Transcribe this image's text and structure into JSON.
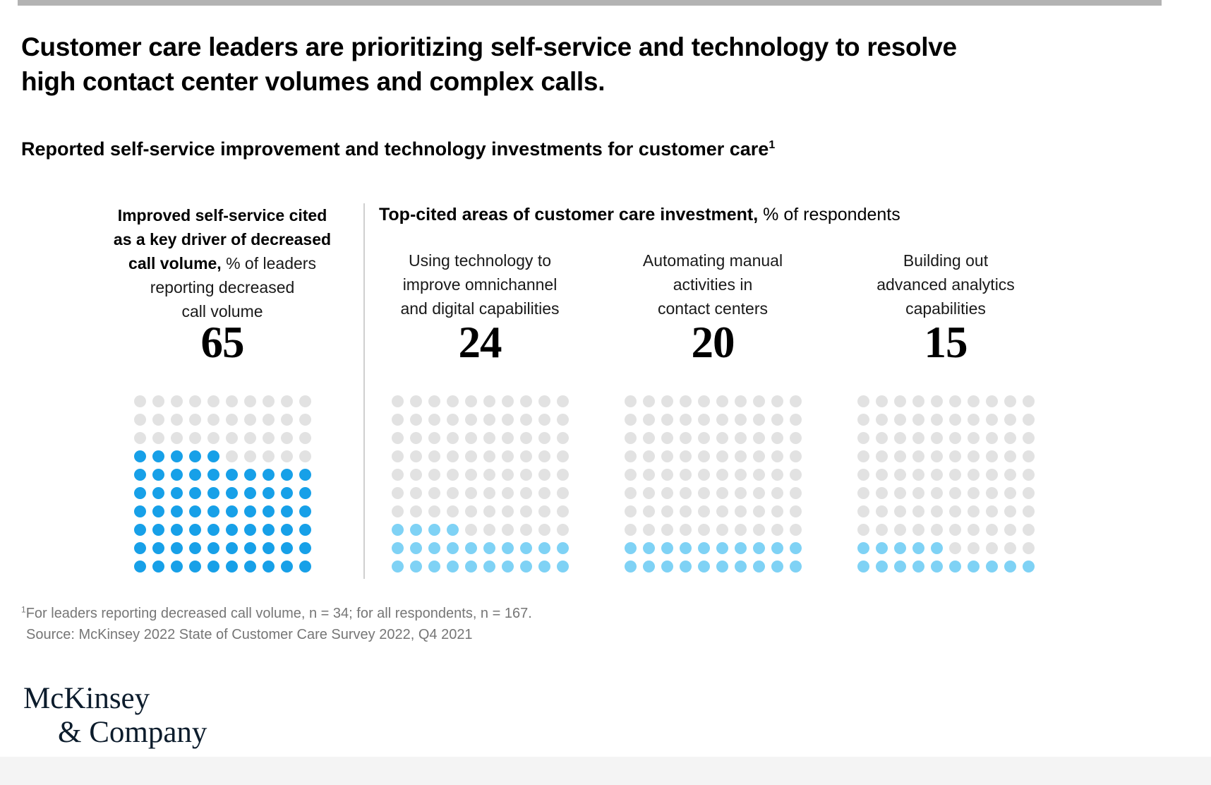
{
  "page": {
    "top_bar_color": "#b3b3b3",
    "title_lines": [
      "Customer care leaders are prioritizing self-service and technology to resolve",
      "high contact center volumes and complex calls."
    ],
    "subtitle": "Reported self-service improvement and technology investments for customer care",
    "subtitle_superscript": "1"
  },
  "chart_data": {
    "type": "waffle",
    "subtype": "pictogram dot grid, each dot = 1 percent, filled bottom-up from bottom-left",
    "grid": {
      "rows": 10,
      "cols": 10
    },
    "categories": [
      "Improved self-service cited as a key driver of decreased call volume, % of leaders reporting decreased call volume",
      "Using technology to improve omnichannel and digital capabilities",
      "Automating manual activities in contact centers",
      "Building out advanced analytics capabilities"
    ],
    "values": [
      65,
      24,
      20,
      15
    ],
    "group_header": {
      "bold": "Top-cited areas of customer care investment,",
      "regular": "% of respondents"
    },
    "empty_dot_color": "#e2e2e2",
    "colors": {
      "primary_blue": "#17a0e8",
      "light_blue": "#7fd2f5",
      "empty_dot": "#e2e2e2"
    },
    "panels": [
      {
        "value": 65,
        "dot_color": "#17a0e8",
        "label": {
          "bold_lines": [
            "Improved self-service cited",
            "as a key driver of decreased"
          ],
          "mixed_bold": "call volume,",
          "mixed_regular": "% of leaders",
          "regular_lines": [
            "reporting decreased",
            "call volume"
          ]
        }
      },
      {
        "value": 24,
        "dot_color": "#7fd2f5",
        "label_lines": [
          "Using technology to",
          "improve omnichannel",
          "and digital capabilities"
        ]
      },
      {
        "value": 20,
        "dot_color": "#7fd2f5",
        "label_lines": [
          "Automating manual",
          "activities in",
          "contact centers"
        ]
      },
      {
        "value": 15,
        "dot_color": "#7fd2f5",
        "label_lines": [
          "Building out",
          "advanced analytics",
          "capabilities"
        ]
      }
    ]
  },
  "footnote": {
    "superscript": "1",
    "line1": "For leaders reporting decreased call volume, n = 34; for all respondents, n = 167.",
    "line2": "Source: McKinsey 2022 State of Customer Care Survey 2022, Q4 2021"
  },
  "logo": {
    "line1": "McKinsey",
    "line2": "& Company"
  }
}
